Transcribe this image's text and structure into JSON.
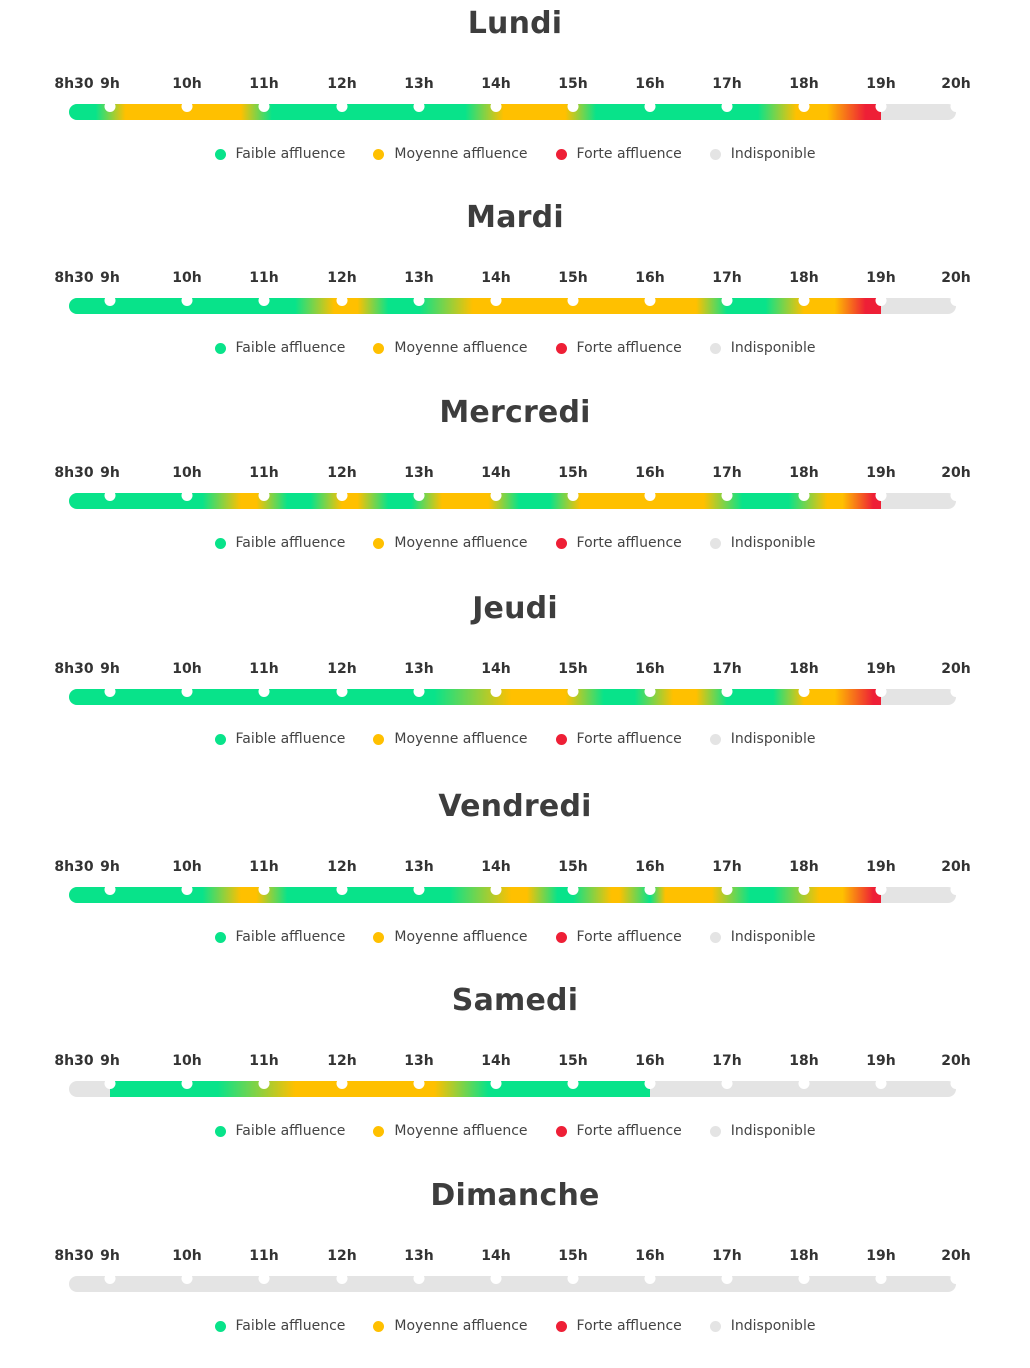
{
  "legend": [
    {
      "label": "Faible affluence",
      "color": "#08e38a",
      "icon": "green-dot-icon"
    },
    {
      "label": "Moyenne affluence",
      "color": "#ffc000",
      "icon": "yellow-dot-icon"
    },
    {
      "label": "Forte affluence",
      "color": "#ee1f36",
      "icon": "red-dot-icon"
    },
    {
      "label": "Indisponible",
      "color": "#e4e4e4",
      "icon": "gray-dot-icon"
    }
  ],
  "chart_data": {
    "type": "heatmap",
    "x_ticks": [
      "8h30",
      "9h",
      "10h",
      "11h",
      "12h",
      "13h",
      "14h",
      "15h",
      "16h",
      "17h",
      "18h",
      "19h",
      "20h"
    ],
    "x_range_hours": [
      8.5,
      20
    ],
    "color_scale": {
      "low": "#08e38a",
      "medium": "#ffc000",
      "high": "#ee1f36",
      "unavailable": "#e4e4e4"
    },
    "days": [
      {
        "name": "Lundi",
        "open": 8.5,
        "close": 19,
        "profile": [
          [
            8.5,
            "low"
          ],
          [
            8.8,
            "low"
          ],
          [
            9.2,
            "medium"
          ],
          [
            10.7,
            "medium"
          ],
          [
            11.1,
            "low"
          ],
          [
            13.6,
            "low"
          ],
          [
            14.1,
            "medium"
          ],
          [
            14.9,
            "medium"
          ],
          [
            15.3,
            "low"
          ],
          [
            17.4,
            "low"
          ],
          [
            17.9,
            "medium"
          ],
          [
            18.3,
            "medium"
          ],
          [
            18.8,
            "high"
          ],
          [
            19,
            "high"
          ]
        ]
      },
      {
        "name": "Mardi",
        "open": 8.5,
        "close": 19,
        "profile": [
          [
            8.5,
            "low"
          ],
          [
            11.4,
            "low"
          ],
          [
            11.9,
            "medium"
          ],
          [
            12.2,
            "medium"
          ],
          [
            12.6,
            "low"
          ],
          [
            13.0,
            "low"
          ],
          [
            13.7,
            "medium"
          ],
          [
            16.6,
            "medium"
          ],
          [
            17.0,
            "low"
          ],
          [
            17.5,
            "low"
          ],
          [
            18.0,
            "medium"
          ],
          [
            18.4,
            "medium"
          ],
          [
            18.8,
            "high"
          ],
          [
            19,
            "high"
          ]
        ]
      },
      {
        "name": "Mercredi",
        "open": 8.5,
        "close": 19,
        "profile": [
          [
            8.5,
            "low"
          ],
          [
            10.2,
            "low"
          ],
          [
            10.7,
            "medium"
          ],
          [
            10.9,
            "medium"
          ],
          [
            11.3,
            "low"
          ],
          [
            11.6,
            "low"
          ],
          [
            12.0,
            "medium"
          ],
          [
            12.2,
            "medium"
          ],
          [
            12.6,
            "low"
          ],
          [
            12.9,
            "low"
          ],
          [
            13.3,
            "medium"
          ],
          [
            13.9,
            "medium"
          ],
          [
            14.3,
            "low"
          ],
          [
            14.7,
            "low"
          ],
          [
            15.1,
            "medium"
          ],
          [
            16.7,
            "medium"
          ],
          [
            17.2,
            "low"
          ],
          [
            17.8,
            "low"
          ],
          [
            18.3,
            "medium"
          ],
          [
            18.5,
            "medium"
          ],
          [
            18.9,
            "high"
          ],
          [
            19,
            "high"
          ]
        ]
      },
      {
        "name": "Jeudi",
        "open": 8.5,
        "close": 19,
        "profile": [
          [
            8.5,
            "low"
          ],
          [
            13.2,
            "low"
          ],
          [
            14.2,
            "medium"
          ],
          [
            14.9,
            "medium"
          ],
          [
            15.4,
            "low"
          ],
          [
            15.8,
            "low"
          ],
          [
            16.3,
            "medium"
          ],
          [
            16.6,
            "medium"
          ],
          [
            17.0,
            "low"
          ],
          [
            17.6,
            "low"
          ],
          [
            18.0,
            "medium"
          ],
          [
            18.4,
            "medium"
          ],
          [
            18.9,
            "high"
          ],
          [
            19,
            "high"
          ]
        ]
      },
      {
        "name": "Vendredi",
        "open": 8.5,
        "close": 19,
        "profile": [
          [
            8.5,
            "low"
          ],
          [
            10.2,
            "low"
          ],
          [
            10.7,
            "medium"
          ],
          [
            10.9,
            "medium"
          ],
          [
            11.3,
            "low"
          ],
          [
            13.4,
            "low"
          ],
          [
            14.2,
            "medium"
          ],
          [
            14.4,
            "medium"
          ],
          [
            14.8,
            "low"
          ],
          [
            15.0,
            "low"
          ],
          [
            15.5,
            "medium"
          ],
          [
            15.6,
            "medium"
          ],
          [
            16.0,
            "low"
          ],
          [
            16.2,
            "medium"
          ],
          [
            16.8,
            "medium"
          ],
          [
            17.3,
            "low"
          ],
          [
            17.6,
            "low"
          ],
          [
            18.2,
            "medium"
          ],
          [
            18.5,
            "medium"
          ],
          [
            18.9,
            "high"
          ],
          [
            19,
            "high"
          ]
        ]
      },
      {
        "name": "Samedi",
        "open": 9,
        "close": 16,
        "profile": [
          [
            9,
            "low"
          ],
          [
            10.4,
            "low"
          ],
          [
            11.4,
            "medium"
          ],
          [
            13.2,
            "medium"
          ],
          [
            13.9,
            "low"
          ],
          [
            16,
            "low"
          ]
        ]
      },
      {
        "name": "Dimanche",
        "open": null,
        "close": null,
        "profile": []
      }
    ]
  }
}
